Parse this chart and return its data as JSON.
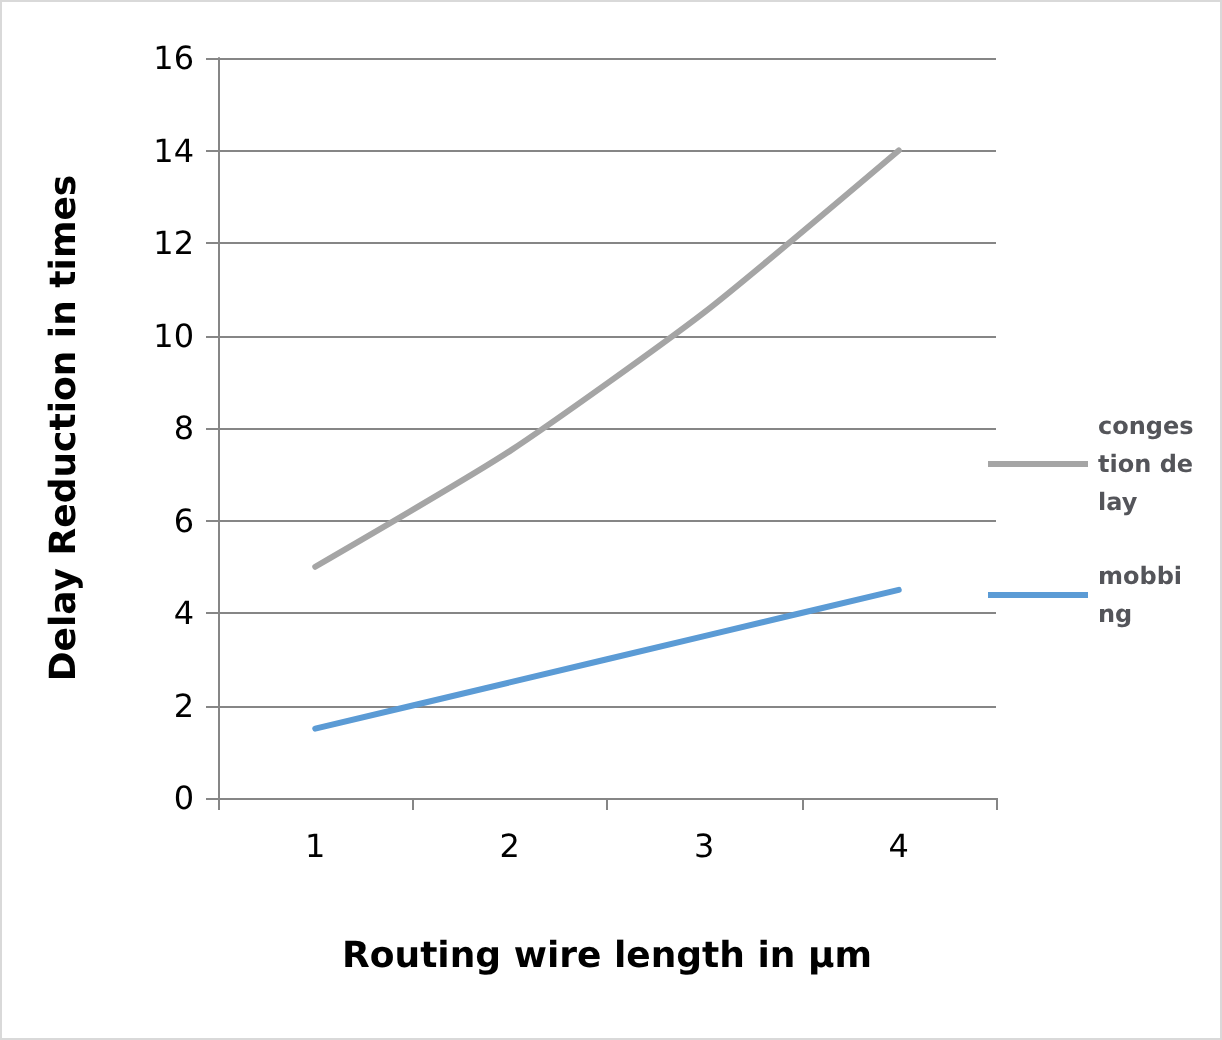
{
  "chart_data": {
    "type": "line",
    "xlabel": "Routing wire length in µm",
    "ylabel": "Delay Reduction in times",
    "categories": [
      "1",
      "2",
      "3",
      "4"
    ],
    "series": [
      {
        "name": "congestion delay",
        "color": "#a5a5a5",
        "values": [
          5,
          7.5,
          10.5,
          14
        ]
      },
      {
        "name": "mobbing",
        "color": "#5b9bd5",
        "values": [
          1.5,
          2.5,
          3.5,
          4.5
        ]
      }
    ],
    "ylim": [
      0,
      16
    ],
    "yticks": [
      0,
      2,
      4,
      6,
      8,
      10,
      12,
      14,
      16
    ],
    "grid": "y",
    "legend": "right",
    "marker": "none",
    "line_style": "solid"
  }
}
